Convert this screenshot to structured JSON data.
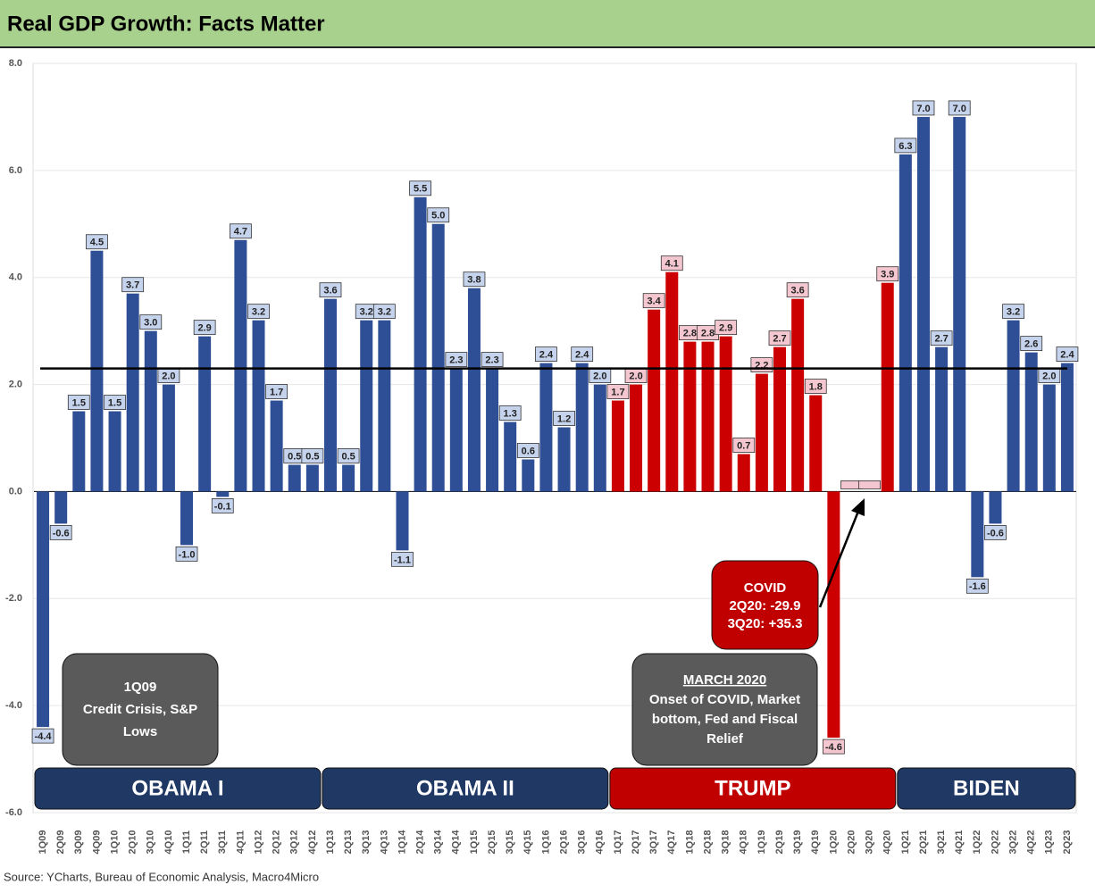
{
  "chart_data": {
    "type": "bar",
    "title": "Real GDP Growth: Facts Matter",
    "source": "Source: YCharts, Bureau of Economic Analysis, Macro4Micro",
    "categories": [
      "1Q09",
      "2Q09",
      "3Q09",
      "4Q09",
      "1Q10",
      "2Q10",
      "3Q10",
      "4Q10",
      "1Q11",
      "2Q11",
      "3Q11",
      "4Q11",
      "1Q12",
      "2Q12",
      "3Q12",
      "4Q12",
      "1Q13",
      "2Q13",
      "3Q13",
      "4Q13",
      "1Q14",
      "2Q14",
      "3Q14",
      "4Q14",
      "1Q15",
      "2Q15",
      "3Q15",
      "4Q15",
      "1Q16",
      "2Q16",
      "3Q16",
      "4Q16",
      "1Q17",
      "2Q17",
      "3Q17",
      "4Q17",
      "1Q18",
      "2Q18",
      "3Q18",
      "4Q18",
      "1Q19",
      "2Q19",
      "3Q19",
      "4Q19",
      "1Q20",
      "2Q20",
      "3Q20",
      "4Q20",
      "1Q21",
      "2Q21",
      "3Q21",
      "4Q21",
      "1Q22",
      "2Q22",
      "3Q22",
      "4Q22",
      "1Q23",
      "2Q23"
    ],
    "values": [
      -4.4,
      -0.6,
      1.5,
      4.5,
      1.5,
      3.7,
      3.0,
      2.0,
      -1.0,
      2.9,
      -0.1,
      4.7,
      3.2,
      1.7,
      0.5,
      0.5,
      3.6,
      0.5,
      3.2,
      3.2,
      -1.1,
      5.5,
      5.0,
      2.3,
      3.8,
      2.3,
      1.3,
      0.6,
      2.4,
      1.2,
      2.4,
      2.0,
      1.7,
      2.0,
      3.4,
      4.1,
      2.8,
      2.8,
      2.9,
      0.7,
      2.2,
      2.7,
      3.6,
      1.8,
      -4.6,
      null,
      null,
      3.9,
      6.3,
      7.0,
      2.7,
      7.0,
      -1.6,
      -0.6,
      3.2,
      2.6,
      2.0,
      2.4
    ],
    "value_labels": [
      "-4.4",
      "-0.6",
      "1.5",
      "4.5",
      "1.5",
      "3.7",
      "3.0",
      "2.0",
      "-1.0",
      "2.9",
      "-0.1",
      "4.7",
      "3.2",
      "1.7",
      "0.5",
      "0.5",
      "3.6",
      "0.5",
      "3.2",
      "3.2",
      "-1.1",
      "5.5",
      "5.0",
      "2.3",
      "3.8",
      "2.3",
      "1.3",
      "0.6",
      "2.4",
      "1.2",
      "2.4",
      "2.0",
      "1.7",
      "2.0",
      "3.4",
      "4.1",
      "2.8",
      "2.8",
      "2.9",
      "0.7",
      "2.2",
      "2.7",
      "3.6",
      "1.8",
      "-4.6",
      null,
      null,
      "3.9",
      "6.3",
      "7.0",
      "2.7",
      "7.0",
      "-1.6",
      "-0.6",
      "3.2",
      "2.6",
      "2.0",
      "2.4"
    ],
    "ylim": [
      -6,
      8
    ],
    "yticks": [
      {
        "value": -6,
        "label": "-6.0"
      },
      {
        "value": -4,
        "label": "-4.0"
      },
      {
        "value": -2,
        "label": "-2.0"
      },
      {
        "value": 0,
        "label": "0.0"
      },
      {
        "value": 2,
        "label": "2.0"
      },
      {
        "value": 4,
        "label": "4.0"
      },
      {
        "value": 6,
        "label": "6.0"
      },
      {
        "value": 8,
        "label": "8.0"
      }
    ],
    "grid": true,
    "reference_line": 2.3,
    "terms": [
      {
        "name": "OBAMA I",
        "from": "1Q09",
        "to": "4Q12",
        "color": "#1f3864",
        "bar_color": "#2e4e95",
        "label_color": "#c5d3ec"
      },
      {
        "name": "OBAMA II",
        "from": "1Q13",
        "to": "4Q16",
        "color": "#1f3864",
        "bar_color": "#2e4e95",
        "label_color": "#c5d3ec"
      },
      {
        "name": "TRUMP",
        "from": "1Q17",
        "to": "4Q20",
        "color": "#c00000",
        "bar_color": "#cc0000",
        "label_color": "#f4c7d0"
      },
      {
        "name": "BIDEN",
        "from": "1Q21",
        "to": "2Q23",
        "color": "#1f3864",
        "bar_color": "#2e4e95",
        "label_color": "#c5d3ec"
      }
    ],
    "annotations": [
      {
        "lines": [
          "1Q09",
          "Credit Crisis, S&P",
          "Lows"
        ]
      },
      {
        "lines": [
          "MARCH 2020",
          "Onset of COVID, Market",
          "bottom, Fed and Fiscal",
          "Relief"
        ]
      },
      {
        "lines": [
          "COVID",
          "2Q20: -29.9",
          "3Q20: +35.3"
        ]
      }
    ]
  }
}
